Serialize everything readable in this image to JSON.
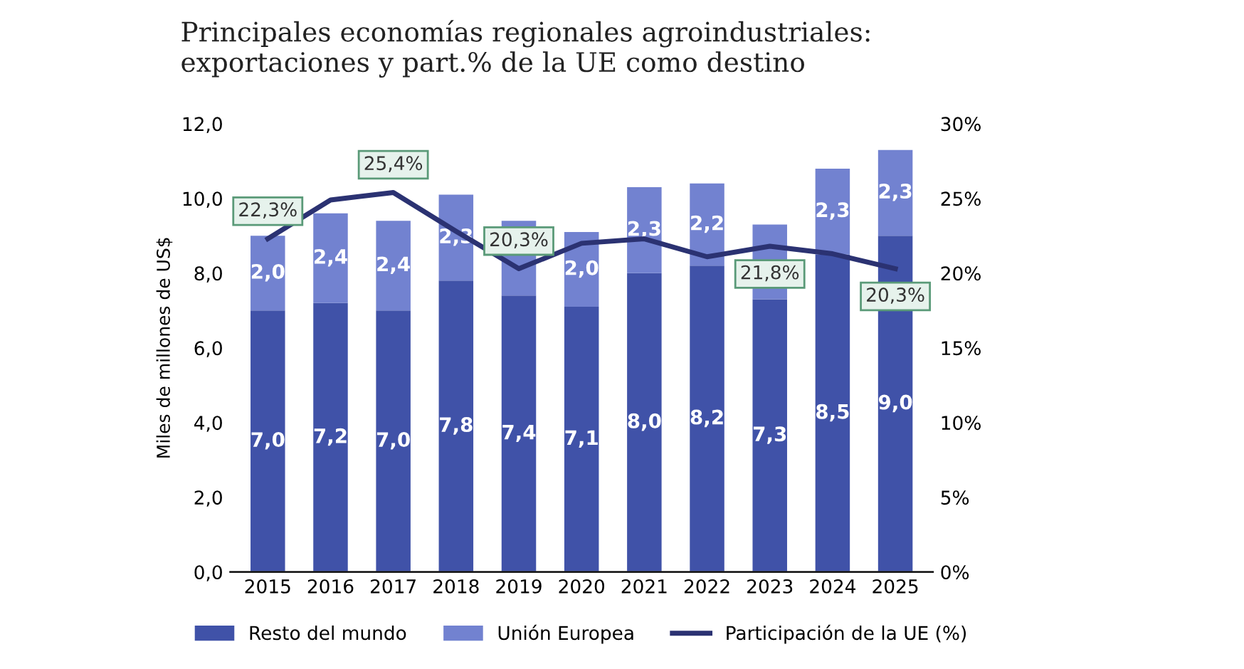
{
  "chart_data": {
    "type": "bar",
    "title": "Principales economías regionales agroindustriales:\nexportaciones y part.% de la UE como destino",
    "ylabel": "Miles de millones de US$",
    "categories": [
      "2015",
      "2016",
      "2017",
      "2018",
      "2019",
      "2020",
      "2021",
      "2022",
      "2023",
      "2024",
      "2025"
    ],
    "stacked": true,
    "series": [
      {
        "name": "Resto del mundo",
        "color": "#4052a8",
        "values": [
          7.0,
          7.2,
          7.0,
          7.8,
          7.4,
          7.1,
          8.0,
          8.2,
          7.3,
          8.5,
          9.0
        ],
        "value_labels": [
          "7,0",
          "7,2",
          "7,0",
          "7,8",
          "7,4",
          "7,1",
          "8,0",
          "8,2",
          "7,3",
          "8,5",
          "9,0"
        ]
      },
      {
        "name": "Unión Europea",
        "color": "#7282d0",
        "values": [
          2.0,
          2.4,
          2.4,
          2.3,
          2.0,
          2.0,
          2.3,
          2.2,
          2.0,
          2.3,
          2.3
        ],
        "value_labels": [
          "2,0",
          "2,4",
          "2,4",
          "2,3",
          null,
          "2,0",
          "2,3",
          "2,2",
          null,
          "2,3",
          "2,3"
        ]
      },
      {
        "name": "Participación de la UE (%)",
        "type": "line",
        "axis": "y2",
        "color": "#2b3272",
        "values": [
          22.3,
          24.9,
          25.4,
          22.8,
          20.3,
          22.0,
          22.3,
          21.1,
          21.8,
          21.3,
          20.3
        ],
        "value_labels": [
          "22,3%",
          null,
          "25,4%",
          null,
          "20,3%",
          null,
          null,
          null,
          "21,8%",
          null,
          "20,3%"
        ]
      }
    ],
    "ylim": [
      0,
      12
    ],
    "yticks": [
      {
        "value": 0,
        "label": "0,0"
      },
      {
        "value": 2,
        "label": "2,0"
      },
      {
        "value": 4,
        "label": "4,0"
      },
      {
        "value": 6,
        "label": "6,0"
      },
      {
        "value": 8,
        "label": "8,0"
      },
      {
        "value": 10,
        "label": "10,0"
      },
      {
        "value": 12,
        "label": "12,0"
      }
    ],
    "y2lim": [
      0,
      30
    ],
    "y2ticks": [
      {
        "value": 0,
        "label": "0%"
      },
      {
        "value": 5,
        "label": "5%"
      },
      {
        "value": 10,
        "label": "10%"
      },
      {
        "value": 15,
        "label": "15%"
      },
      {
        "value": 20,
        "label": "20%"
      },
      {
        "value": 25,
        "label": "25%"
      },
      {
        "value": 30,
        "label": "30%"
      }
    ],
    "legend": "bottom",
    "grid": false,
    "line_style": "solid",
    "marker": "none"
  }
}
